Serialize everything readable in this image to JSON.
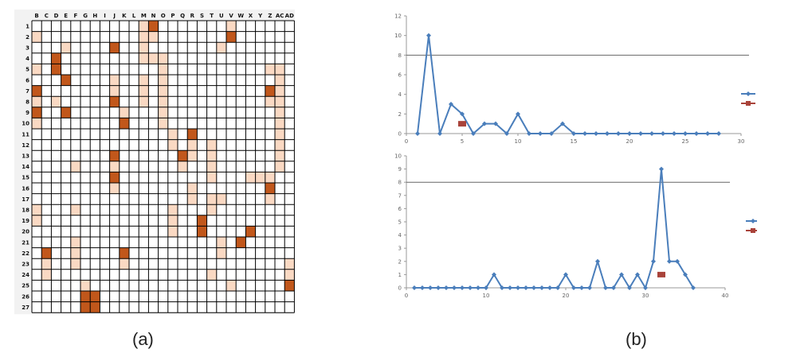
{
  "labels": {
    "a": "(a)",
    "b": "(b)"
  },
  "colors": {
    "grid": "#000000",
    "light": "#fad9c3",
    "dark": "#c1571b",
    "line": "#4a7ebb",
    "red": "#a9433a"
  },
  "chart_data": [
    {
      "type": "heatmap",
      "title": "",
      "columns": [
        "B",
        "C",
        "D",
        "E",
        "F",
        "G",
        "H",
        "I",
        "J",
        "K",
        "L",
        "M",
        "N",
        "O",
        "P",
        "Q",
        "R",
        "S",
        "T",
        "U",
        "V",
        "W",
        "X",
        "Y",
        "Z",
        "AC",
        "AD"
      ],
      "rows": [
        "1",
        "2",
        "3",
        "4",
        "5",
        "6",
        "7",
        "8",
        "9",
        "10",
        "11",
        "12",
        "13",
        "14",
        "15",
        "16",
        "17",
        "18",
        "19",
        "20",
        "21",
        "22",
        "23",
        "24",
        "25",
        "26",
        "27"
      ],
      "levels": "0 = empty, 1 = light, 2 = dark",
      "cells": [
        [
          0,
          0,
          0,
          0,
          0,
          0,
          0,
          0,
          0,
          0,
          0,
          1,
          2,
          0,
          0,
          0,
          0,
          0,
          0,
          0,
          1,
          0,
          0,
          0,
          0,
          0,
          0
        ],
        [
          1,
          0,
          0,
          0,
          0,
          0,
          0,
          0,
          0,
          0,
          0,
          1,
          1,
          0,
          0,
          0,
          0,
          0,
          0,
          0,
          2,
          0,
          0,
          0,
          0,
          0,
          0
        ],
        [
          0,
          0,
          0,
          1,
          0,
          0,
          0,
          0,
          2,
          0,
          0,
          1,
          0,
          0,
          0,
          0,
          0,
          0,
          0,
          1,
          0,
          0,
          0,
          0,
          0,
          0,
          0
        ],
        [
          0,
          0,
          2,
          0,
          0,
          0,
          0,
          0,
          0,
          0,
          0,
          1,
          1,
          1,
          0,
          0,
          0,
          0,
          0,
          0,
          0,
          0,
          0,
          0,
          0,
          0,
          0
        ],
        [
          1,
          0,
          2,
          0,
          0,
          0,
          0,
          0,
          0,
          0,
          0,
          0,
          0,
          1,
          0,
          0,
          0,
          0,
          0,
          0,
          0,
          0,
          0,
          0,
          1,
          1,
          0
        ],
        [
          0,
          0,
          0,
          2,
          0,
          0,
          0,
          0,
          1,
          0,
          0,
          1,
          0,
          1,
          0,
          0,
          0,
          0,
          0,
          0,
          0,
          0,
          0,
          0,
          0,
          1,
          0
        ],
        [
          2,
          0,
          0,
          0,
          0,
          0,
          0,
          0,
          1,
          0,
          0,
          1,
          0,
          1,
          0,
          0,
          0,
          0,
          0,
          0,
          0,
          0,
          0,
          0,
          2,
          1,
          0
        ],
        [
          1,
          0,
          1,
          0,
          0,
          0,
          0,
          0,
          2,
          0,
          0,
          1,
          0,
          1,
          0,
          0,
          0,
          0,
          0,
          0,
          0,
          0,
          0,
          0,
          1,
          1,
          0
        ],
        [
          2,
          0,
          0,
          2,
          0,
          0,
          0,
          0,
          0,
          1,
          0,
          0,
          0,
          1,
          0,
          0,
          0,
          0,
          0,
          0,
          0,
          0,
          0,
          0,
          0,
          1,
          0
        ],
        [
          1,
          0,
          0,
          0,
          0,
          0,
          0,
          0,
          0,
          2,
          0,
          0,
          0,
          1,
          0,
          0,
          0,
          0,
          0,
          0,
          0,
          0,
          0,
          0,
          0,
          1,
          0
        ],
        [
          0,
          0,
          0,
          0,
          0,
          0,
          0,
          0,
          0,
          0,
          0,
          0,
          0,
          0,
          1,
          0,
          2,
          0,
          0,
          0,
          0,
          0,
          0,
          0,
          0,
          1,
          0
        ],
        [
          0,
          0,
          0,
          0,
          0,
          0,
          0,
          0,
          0,
          0,
          0,
          0,
          0,
          0,
          1,
          0,
          1,
          0,
          1,
          0,
          0,
          0,
          0,
          0,
          0,
          1,
          0
        ],
        [
          0,
          0,
          0,
          0,
          0,
          0,
          0,
          0,
          2,
          0,
          0,
          0,
          0,
          0,
          0,
          2,
          1,
          0,
          1,
          0,
          0,
          0,
          0,
          0,
          0,
          1,
          0
        ],
        [
          0,
          0,
          0,
          0,
          1,
          0,
          0,
          0,
          1,
          0,
          0,
          0,
          0,
          0,
          0,
          1,
          0,
          0,
          1,
          0,
          0,
          0,
          0,
          0,
          0,
          1,
          0
        ],
        [
          0,
          0,
          0,
          0,
          0,
          0,
          0,
          0,
          2,
          0,
          0,
          0,
          0,
          0,
          0,
          0,
          0,
          0,
          1,
          0,
          0,
          0,
          1,
          1,
          1,
          0,
          0
        ],
        [
          0,
          0,
          0,
          0,
          0,
          0,
          0,
          0,
          1,
          0,
          0,
          0,
          0,
          0,
          0,
          0,
          1,
          0,
          0,
          0,
          0,
          0,
          0,
          0,
          2,
          0,
          0
        ],
        [
          0,
          0,
          0,
          0,
          0,
          0,
          0,
          0,
          0,
          0,
          0,
          0,
          0,
          0,
          0,
          0,
          1,
          0,
          1,
          1,
          0,
          0,
          0,
          0,
          1,
          0,
          0
        ],
        [
          1,
          0,
          0,
          0,
          1,
          0,
          0,
          0,
          0,
          0,
          0,
          0,
          0,
          0,
          1,
          0,
          0,
          0,
          1,
          0,
          0,
          0,
          0,
          0,
          0,
          0,
          0
        ],
        [
          1,
          0,
          0,
          0,
          0,
          0,
          0,
          0,
          0,
          0,
          0,
          0,
          0,
          0,
          1,
          0,
          0,
          2,
          0,
          0,
          0,
          0,
          0,
          0,
          0,
          0,
          0
        ],
        [
          0,
          0,
          0,
          0,
          0,
          0,
          0,
          0,
          0,
          0,
          0,
          0,
          0,
          0,
          1,
          0,
          0,
          2,
          0,
          0,
          0,
          0,
          2,
          0,
          0,
          0,
          0
        ],
        [
          0,
          0,
          0,
          0,
          1,
          0,
          0,
          0,
          0,
          0,
          0,
          0,
          0,
          0,
          0,
          0,
          0,
          0,
          0,
          1,
          0,
          2,
          0,
          0,
          0,
          0,
          0
        ],
        [
          0,
          2,
          0,
          0,
          1,
          0,
          0,
          0,
          0,
          2,
          0,
          0,
          0,
          0,
          0,
          0,
          0,
          0,
          0,
          1,
          0,
          0,
          0,
          0,
          0,
          0,
          0
        ],
        [
          0,
          1,
          0,
          0,
          1,
          0,
          0,
          0,
          0,
          1,
          0,
          0,
          0,
          0,
          0,
          0,
          0,
          0,
          0,
          0,
          0,
          0,
          0,
          0,
          0,
          0,
          1
        ],
        [
          0,
          1,
          0,
          0,
          0,
          0,
          0,
          0,
          0,
          0,
          0,
          0,
          0,
          0,
          0,
          0,
          0,
          0,
          1,
          0,
          0,
          0,
          0,
          0,
          0,
          0,
          1
        ],
        [
          0,
          0,
          0,
          0,
          0,
          1,
          0,
          0,
          0,
          0,
          0,
          0,
          0,
          0,
          0,
          0,
          0,
          0,
          0,
          0,
          1,
          0,
          0,
          0,
          0,
          0,
          2
        ],
        [
          0,
          0,
          0,
          0,
          0,
          2,
          2,
          0,
          0,
          0,
          0,
          0,
          0,
          0,
          0,
          0,
          0,
          0,
          0,
          0,
          0,
          0,
          0,
          0,
          0,
          0,
          0
        ],
        [
          0,
          0,
          0,
          0,
          0,
          2,
          2,
          0,
          0,
          0,
          0,
          0,
          0,
          0,
          0,
          0,
          0,
          0,
          0,
          0,
          0,
          0,
          0,
          0,
          0,
          0,
          0
        ]
      ]
    },
    {
      "type": "line",
      "xlim": [
        0,
        30
      ],
      "xticks": [
        "0",
        "5",
        "10",
        "15",
        "20",
        "25",
        "30"
      ],
      "ylim": [
        0,
        12
      ],
      "yticks": [
        "0",
        "2",
        "4",
        "6",
        "8",
        "10",
        "12"
      ],
      "threshold": 8,
      "legend": "right",
      "series": [
        {
          "kind": "line",
          "x": [
            1,
            2,
            3,
            4,
            5,
            6,
            7,
            8,
            9,
            10,
            11,
            12,
            13,
            14,
            15,
            16,
            17,
            18,
            19,
            20,
            21,
            22,
            23,
            24,
            25,
            26,
            27,
            28
          ],
          "values": [
            0,
            10,
            0,
            3,
            2,
            0,
            1,
            1,
            0,
            2,
            0,
            0,
            0,
            1,
            0,
            0,
            0,
            0,
            0,
            0,
            0,
            0,
            0,
            0,
            0,
            0,
            0,
            0
          ]
        },
        {
          "kind": "marker",
          "x": [
            5
          ],
          "values": [
            1
          ]
        }
      ]
    },
    {
      "type": "line",
      "xlim": [
        0,
        40
      ],
      "xticks": [
        "0",
        "10",
        "20",
        "30",
        "40"
      ],
      "ylim": [
        0,
        10
      ],
      "yticks": [
        "0",
        "1",
        "2",
        "3",
        "4",
        "5",
        "6",
        "7",
        "8",
        "9",
        "10"
      ],
      "threshold": 8,
      "legend": "right",
      "series": [
        {
          "kind": "line",
          "x": [
            1,
            2,
            3,
            4,
            5,
            6,
            7,
            8,
            9,
            10,
            11,
            12,
            13,
            14,
            15,
            16,
            17,
            18,
            19,
            20,
            21,
            22,
            23,
            24,
            25,
            26,
            27,
            28,
            29,
            30,
            31,
            32,
            33,
            34,
            35,
            36
          ],
          "values": [
            0,
            0,
            0,
            0,
            0,
            0,
            0,
            0,
            0,
            0,
            1,
            0,
            0,
            0,
            0,
            0,
            0,
            0,
            0,
            1,
            0,
            0,
            0,
            2,
            0,
            0,
            1,
            0,
            1,
            0,
            2,
            9,
            2,
            2,
            1,
            0
          ]
        },
        {
          "kind": "marker",
          "x": [
            32
          ],
          "values": [
            1
          ]
        }
      ]
    }
  ]
}
